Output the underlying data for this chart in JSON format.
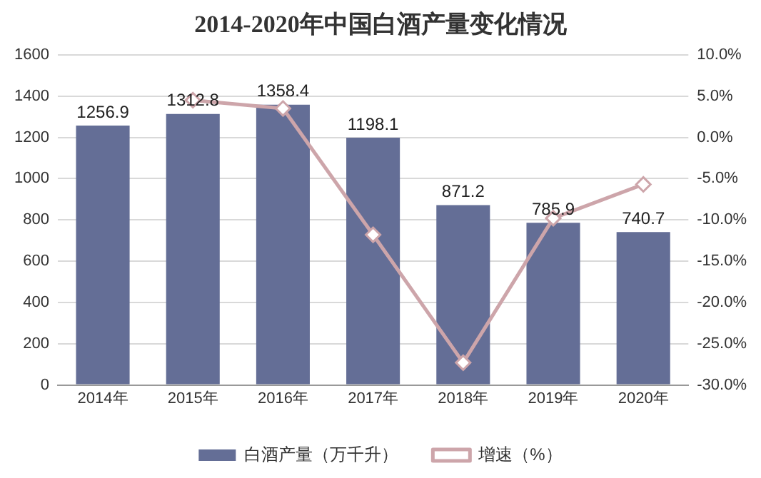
{
  "chart_data": {
    "type": "bar",
    "title": "2014-2020年中国白酒产量变化情况",
    "categories": [
      "2014年",
      "2015年",
      "2016年",
      "2017年",
      "2018年",
      "2019年",
      "2020年"
    ],
    "series": [
      {
        "name": "白酒产量（万千升）",
        "color": "#646e96",
        "values": [
          1256.9,
          1312.8,
          1358.4,
          1198.1,
          871.2,
          785.9,
          740.7
        ],
        "value_labels": [
          "1256.9",
          "1312.8",
          "1358.4",
          "1198.1",
          "871.2",
          "785.9",
          "740.7"
        ]
      },
      {
        "name": "增速（%）",
        "type": "line",
        "axis": "y2",
        "color": "#cda5aa",
        "marker": "diamond",
        "values": [
          null,
          4.5,
          3.5,
          -11.8,
          -27.3,
          -9.8,
          -5.7
        ]
      }
    ],
    "ylim": [
      0,
      1600
    ],
    "yticks": [
      0,
      200,
      400,
      600,
      800,
      1000,
      1200,
      1400,
      1600
    ],
    "y2lim": [
      -30,
      10
    ],
    "y2ticks": [
      {
        "value": -30,
        "label": "-30.0%"
      },
      {
        "value": -25,
        "label": "-25.0%"
      },
      {
        "value": -20,
        "label": "-20.0%"
      },
      {
        "value": -15,
        "label": "-15.0%"
      },
      {
        "value": -10,
        "label": "-10.0%"
      },
      {
        "value": -5,
        "label": "-5.0%"
      },
      {
        "value": 0,
        "label": "0.0%"
      },
      {
        "value": 5,
        "label": "5.0%"
      },
      {
        "value": 10,
        "label": "10.0%"
      }
    ],
    "grid": "y",
    "legend": "bottom"
  }
}
